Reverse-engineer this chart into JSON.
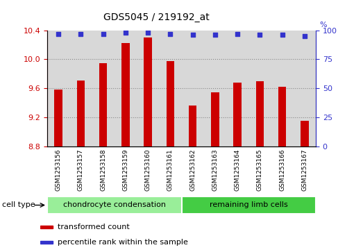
{
  "title": "GDS5045 / 219192_at",
  "samples": [
    "GSM1253156",
    "GSM1253157",
    "GSM1253158",
    "GSM1253159",
    "GSM1253160",
    "GSM1253161",
    "GSM1253162",
    "GSM1253163",
    "GSM1253164",
    "GSM1253165",
    "GSM1253166",
    "GSM1253167"
  ],
  "bar_values": [
    9.58,
    9.71,
    9.95,
    10.22,
    10.3,
    9.97,
    9.36,
    9.54,
    9.68,
    9.7,
    9.62,
    9.15
  ],
  "percentile_values": [
    97,
    97,
    97,
    98,
    98,
    97,
    96,
    96,
    97,
    96,
    96,
    95
  ],
  "bar_color": "#cc0000",
  "dot_color": "#3333cc",
  "ylim_left": [
    8.8,
    10.4
  ],
  "ylim_right": [
    0,
    100
  ],
  "yticks_left": [
    8.8,
    9.2,
    9.6,
    10.0,
    10.4
  ],
  "yticks_right": [
    0,
    25,
    50,
    75,
    100
  ],
  "grid_values": [
    9.2,
    9.6,
    10.0
  ],
  "cell_types": [
    {
      "label": "chondrocyte condensation",
      "start": 0,
      "end": 6,
      "color": "#99ee99"
    },
    {
      "label": "remaining limb cells",
      "start": 6,
      "end": 12,
      "color": "#44cc44"
    }
  ],
  "legend_items": [
    {
      "label": "transformed count",
      "color": "#cc0000"
    },
    {
      "label": "percentile rank within the sample",
      "color": "#3333cc"
    }
  ],
  "cell_type_label": "cell type",
  "plot_bg": "#d8d8d8",
  "background_color": "#ffffff",
  "tick_label_color_left": "#cc0000",
  "tick_label_color_right": "#3333cc"
}
